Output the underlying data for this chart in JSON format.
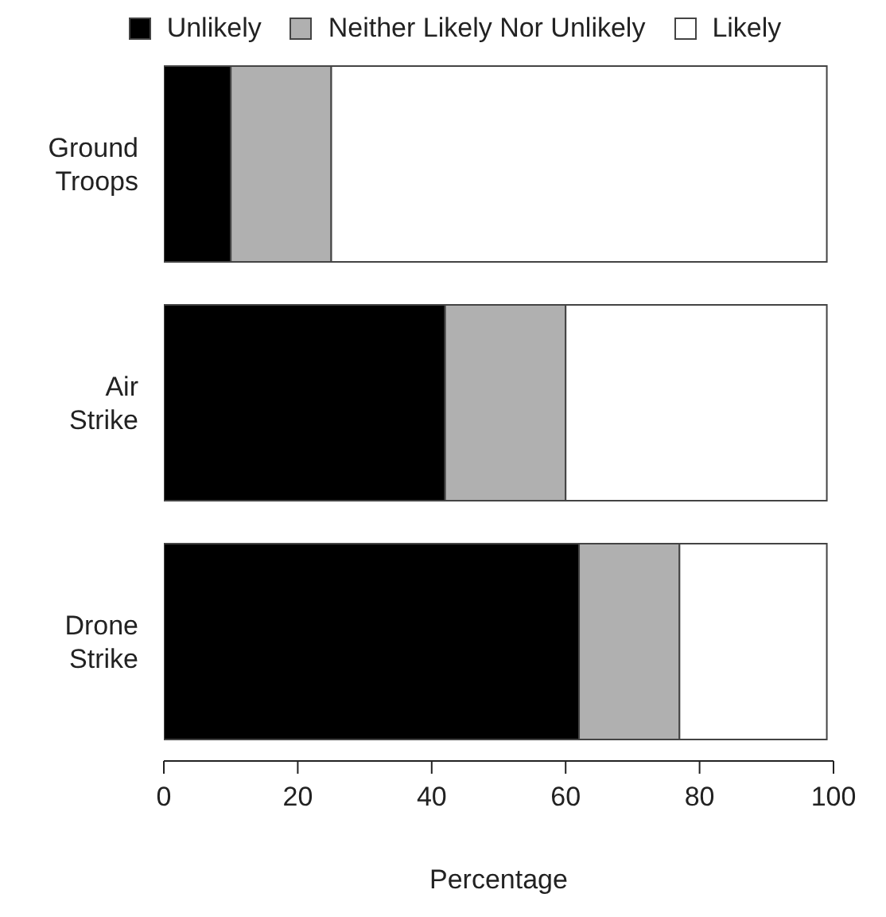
{
  "chart_data": {
    "type": "bar",
    "orientation": "horizontal",
    "stacked": true,
    "xlabel": "Percentage",
    "categories": [
      "Ground Troops",
      "Air Strike",
      "Drone Strike"
    ],
    "series": [
      {
        "name": "Unlikely",
        "color": "#000000",
        "values": [
          10,
          42,
          62
        ]
      },
      {
        "name": "Neither Likely Nor Unlikely",
        "color": "#b0b0b0",
        "values": [
          15,
          18,
          15
        ]
      },
      {
        "name": "Likely",
        "color": "#ffffff",
        "values": [
          74,
          39,
          22
        ]
      }
    ],
    "xlim": [
      0,
      100
    ],
    "xticks": [
      0,
      20,
      40,
      60,
      80,
      100
    ],
    "grid": false,
    "legend": "top"
  }
}
